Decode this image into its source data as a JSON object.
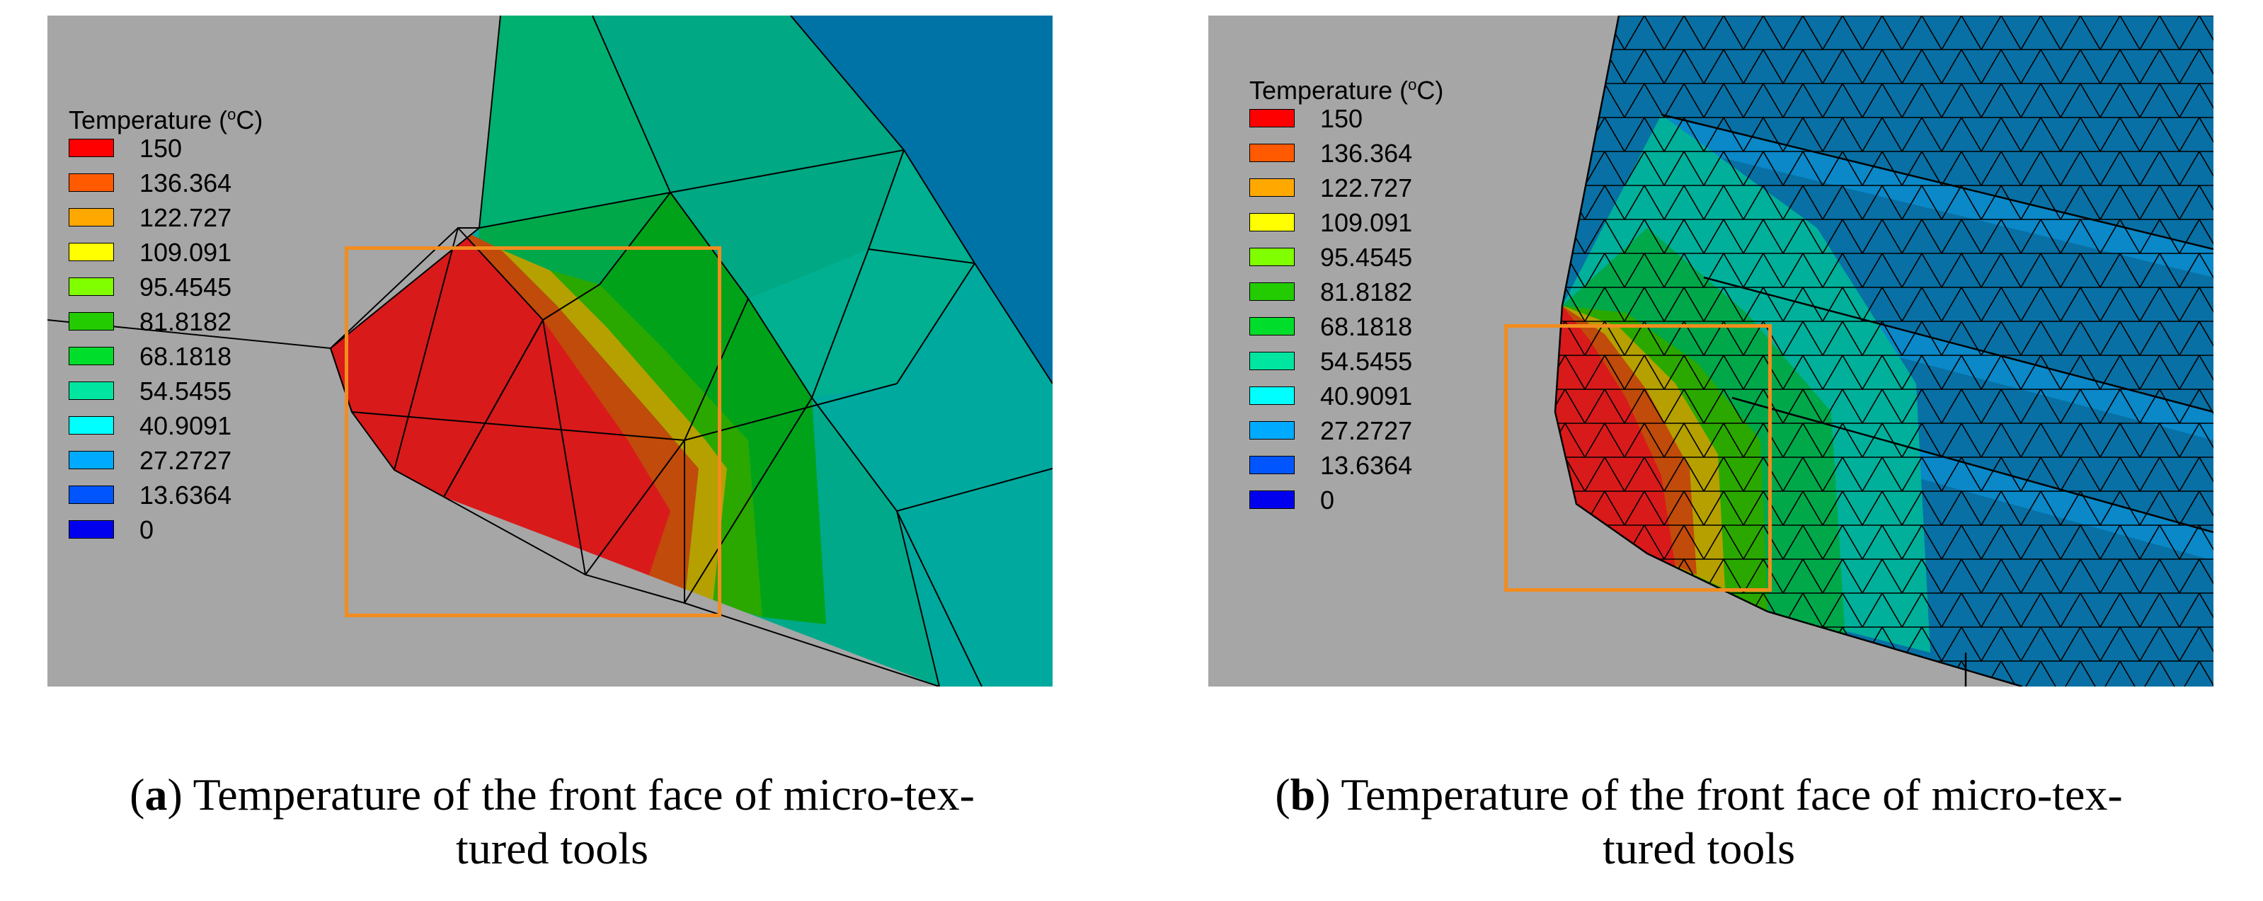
{
  "legend": {
    "title_prefix": "Temperature (",
    "title_sup": "o",
    "title_suffix": "C)",
    "values": [
      "150",
      "136.364",
      "122.727",
      "109.091",
      "95.4545",
      "81.8182",
      "68.1818",
      "54.5455",
      "40.9091",
      "27.2727",
      "13.6364",
      "0"
    ],
    "colors": [
      "#ff0000",
      "#ff5a00",
      "#ffa800",
      "#ffff00",
      "#80ff00",
      "#22cc00",
      "#00dd2a",
      "#00e6a0",
      "#00ffff",
      "#00aaff",
      "#0055ff",
      "#0000ee"
    ]
  },
  "panels": [
    {
      "id": "a",
      "letter": "a",
      "caption_line1": "Temperature of the front face of micro-tex-",
      "caption_line2": "tured tools"
    },
    {
      "id": "b",
      "letter": "b",
      "caption_line1": "Temperature of the front face of micro-tex-",
      "caption_line2": "tured tools"
    }
  ],
  "colors": {
    "background": "#a6a6a6",
    "highlight_box": "#f28c1e",
    "mesh_line": "#000000"
  }
}
